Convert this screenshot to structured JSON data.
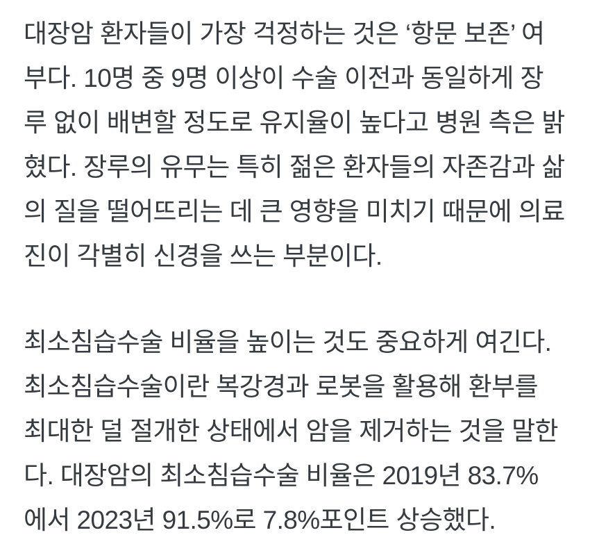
{
  "page": {
    "background_color": "#ffffff",
    "text_color": "#363b42"
  },
  "article": {
    "paragraphs": [
      {
        "lines": [
          "대장암 환자들이 가장 걱정하는 것은 ‘항문 보존’ 여",
          "부다. 10명 중 9명 이상이 수술 이전과 동일하게 장",
          "루 없이 배변할 정도로 유지율이 높다고 병원 측은 밝",
          "혔다. 장루의 유무는 특히 젊은 환자들의 자존감과 삶",
          "의 질을 떨어뜨리는 데 큰 영향을 미치기 때문에 의료",
          "진이 각별히 신경을 쓰는 부분이다."
        ]
      },
      {
        "lines": [
          "최소침습수술 비율을 높이는 것도 중요하게 여긴다.",
          "최소침습수술이란 복강경과 로봇을 활용해 환부를",
          "최대한 덜 절개한 상태에서 암을 제거하는 것을 말한",
          "다. 대장암의 최소침습수술 비율은 2019년 83.7%",
          "에서 2023년 91.5%로 7.8%포인트 상승했다."
        ]
      }
    ],
    "statistics": {
      "minimally_invasive_surgery_rate_2019": "83.7%",
      "minimally_invasive_surgery_rate_2023": "91.5%",
      "rate_increase": "7.8%포인트"
    }
  }
}
